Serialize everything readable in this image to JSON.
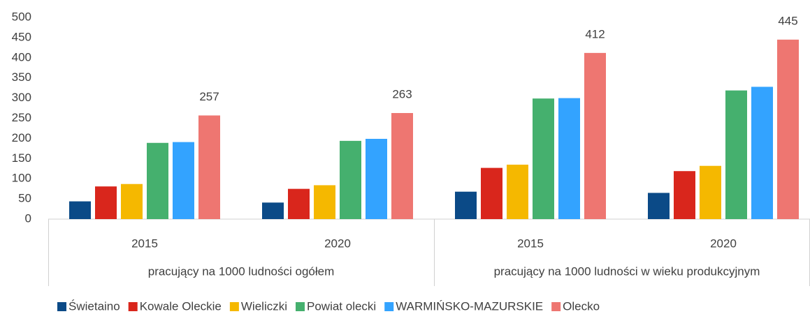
{
  "chart_data": {
    "type": "bar",
    "groups": [
      {
        "label": "pracujący na 1000 ludności ogółem",
        "categories": [
          "2015",
          "2020"
        ]
      },
      {
        "label": "pracujący na 1000 ludności w wieku produkcyjnym",
        "categories": [
          "2015",
          "2020"
        ]
      }
    ],
    "series": [
      {
        "name": "Świetaino",
        "color": "#0b4a87",
        "values": [
          44,
          41,
          68,
          65
        ]
      },
      {
        "name": "Kowale Oleckie",
        "color": "#d9261c",
        "values": [
          81,
          75,
          127,
          119
        ]
      },
      {
        "name": "Wieliczki",
        "color": "#f5b800",
        "values": [
          87,
          84,
          135,
          132
        ]
      },
      {
        "name": "Powiat olecki",
        "color": "#45b06e",
        "values": [
          189,
          194,
          299,
          319
        ]
      },
      {
        "name": "WARMIŃSKO-MAZURSKIE",
        "color": "#33a3ff",
        "values": [
          191,
          199,
          300,
          328
        ]
      },
      {
        "name": "Olecko",
        "color": "#ee7671",
        "values": [
          257,
          263,
          412,
          445
        ],
        "data_labels": true
      }
    ],
    "ylim": [
      0,
      500
    ],
    "yticks": [
      0,
      50,
      100,
      150,
      200,
      250,
      300,
      350,
      400,
      450,
      500
    ],
    "grid": false,
    "legend": "bottom"
  }
}
